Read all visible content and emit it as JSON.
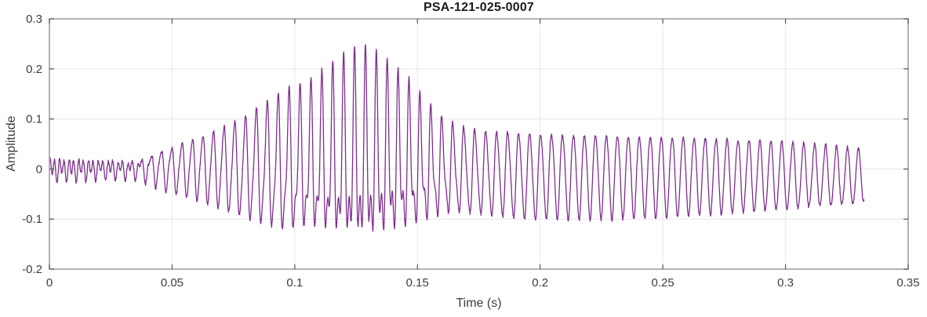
{
  "chart_data": {
    "type": "line",
    "title": "PSA-121-025-0007",
    "xlabel": "Time (s)",
    "ylabel": "Amplitude",
    "xlim": [
      0,
      0.35
    ],
    "ylim": [
      -0.2,
      0.3
    ],
    "xticks": [
      0,
      0.05,
      0.1,
      0.15,
      0.2,
      0.25,
      0.3,
      0.35
    ],
    "xtick_labels": [
      "0",
      "0.05",
      "0.1",
      "0.15",
      "0.2",
      "0.25",
      "0.3",
      "0.35"
    ],
    "yticks": [
      -0.2,
      -0.1,
      0,
      0.1,
      0.2,
      0.3
    ],
    "ytick_labels": [
      "-0.2",
      "-0.1",
      "0",
      "0.1",
      "0.2",
      "0.3"
    ],
    "grid": true,
    "legend": "none",
    "line_color": "#7E2F8E",
    "grid_color": "#e6e6e6",
    "box_color": "#9a9a9a",
    "tick_color": "#555555",
    "text_color": "#3d3d3d",
    "signal": {
      "description": "single-channel oscillatory waveform: low-amplitude ~450Hz onset, amplitude burst peaking +0.245/-0.175 near t=0.125s with mixed ~225Hz and ~455Hz content, settling to steady ~220Hz tail (+0.07/-0.095) decaying until t=0.332s",
      "t_start": 0.0,
      "t_end": 0.332,
      "samples": 2600,
      "carrier_freq_start_hz": 255,
      "carrier_freq_hz": 224,
      "carrier_glide_end_t": 0.09,
      "overtone_ratio": 2.02,
      "overtone_phase": 1.0,
      "noise_amp": 0.0035,
      "carrier_envelope": [
        [
          0.0,
          0.01
        ],
        [
          0.02,
          0.009
        ],
        [
          0.035,
          0.012
        ],
        [
          0.045,
          0.035
        ],
        [
          0.055,
          0.052
        ],
        [
          0.065,
          0.068
        ],
        [
          0.075,
          0.088
        ],
        [
          0.085,
          0.108
        ],
        [
          0.095,
          0.125
        ],
        [
          0.105,
          0.122
        ],
        [
          0.115,
          0.138
        ],
        [
          0.125,
          0.152
        ],
        [
          0.132,
          0.148
        ],
        [
          0.14,
          0.132
        ],
        [
          0.148,
          0.118
        ],
        [
          0.155,
          0.096
        ],
        [
          0.162,
          0.084
        ],
        [
          0.175,
          0.08
        ],
        [
          0.195,
          0.085
        ],
        [
          0.225,
          0.083
        ],
        [
          0.26,
          0.078
        ],
        [
          0.3,
          0.067
        ],
        [
          0.332,
          0.053
        ]
      ],
      "overtone_envelope": [
        [
          0.0,
          0.019
        ],
        [
          0.015,
          0.016
        ],
        [
          0.03,
          0.013
        ],
        [
          0.045,
          0.008
        ],
        [
          0.065,
          0.009
        ],
        [
          0.08,
          0.016
        ],
        [
          0.09,
          0.03
        ],
        [
          0.1,
          0.048
        ],
        [
          0.11,
          0.062
        ],
        [
          0.12,
          0.08
        ],
        [
          0.127,
          0.092
        ],
        [
          0.135,
          0.082
        ],
        [
          0.143,
          0.068
        ],
        [
          0.152,
          0.048
        ],
        [
          0.16,
          0.028
        ],
        [
          0.17,
          0.012
        ],
        [
          0.19,
          0.007
        ],
        [
          0.23,
          0.006
        ],
        [
          0.28,
          0.004
        ],
        [
          0.332,
          0.003
        ]
      ],
      "dc_envelope": [
        [
          0.0,
          0.0
        ],
        [
          0.1,
          0.002
        ],
        [
          0.12,
          0.008
        ],
        [
          0.14,
          0.008
        ],
        [
          0.155,
          0.0
        ],
        [
          0.175,
          -0.008
        ],
        [
          0.2,
          -0.013
        ],
        [
          0.3,
          -0.013
        ],
        [
          0.332,
          -0.015
        ]
      ]
    }
  }
}
